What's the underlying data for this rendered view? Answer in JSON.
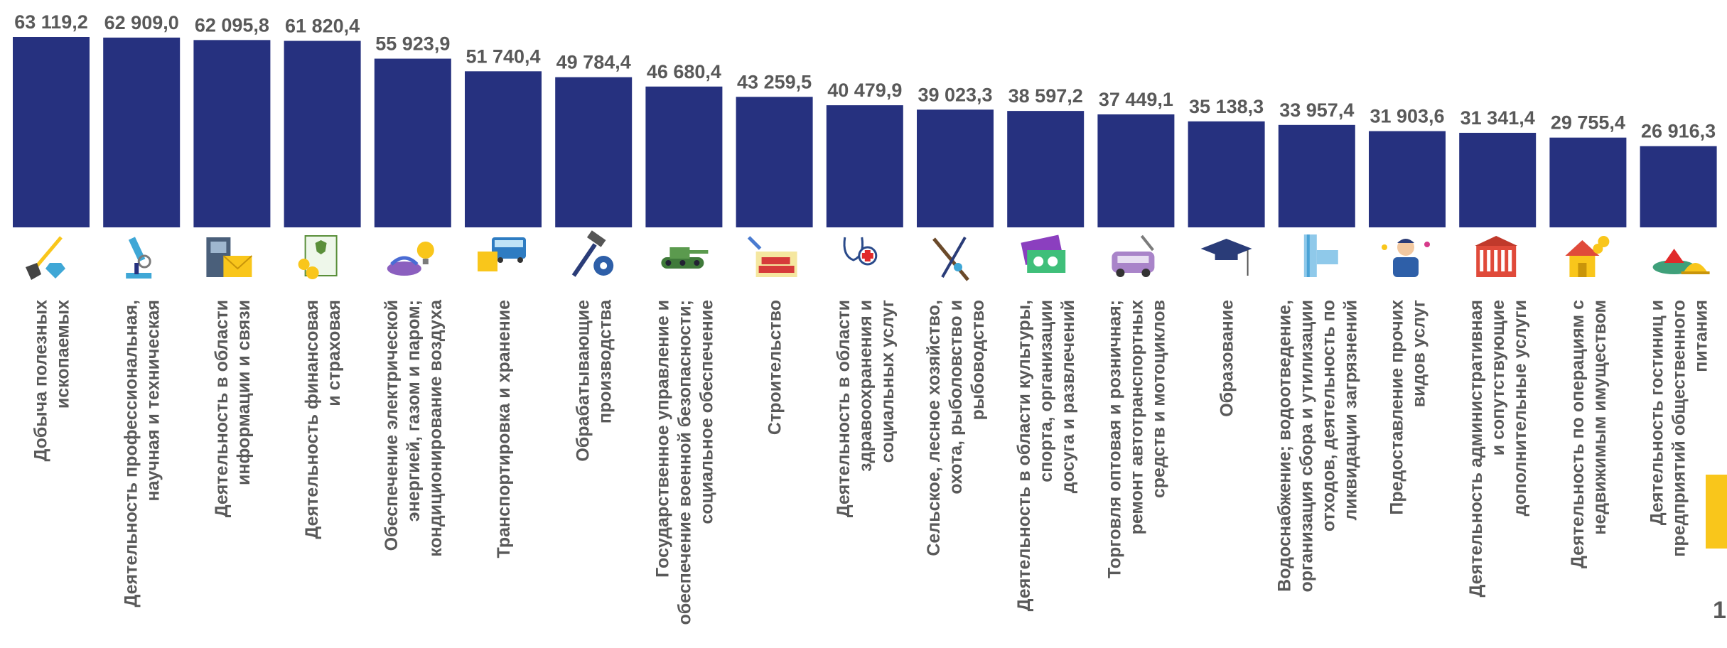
{
  "colors": {
    "bar": "#26317f",
    "text": "#595959",
    "accent": "#f9c61b"
  },
  "page_number": "1",
  "chart_data": {
    "type": "bar",
    "title": "",
    "xlabel": "",
    "ylabel": "",
    "ylim": [
      0,
      63119.2
    ],
    "grid": false,
    "legend": "none",
    "categories": [
      "Добыча полезных ископаемых",
      "Деятельность профессиональная, научная и техническая",
      "Деятельность в области информации и связи",
      "Деятельность финансовая и страховая",
      "Обеспечение электрической энергией, газом и паром; кондиционирование воздуха",
      "Транспортировка и хранение",
      "Обрабатывающие производства",
      "Государственное управление и обеспечение военной безопасности; социальное обеспечение",
      "Строительство",
      "Деятельность в области здравоохранения и социальных услуг",
      "Сельское, лесное хозяйство, охота, рыболовство и рыбоводство",
      "Деятельность в области культуры, спорта, организации досуга и развлечений",
      "Торговля оптовая и розничная; ремонт автотранспортных средств и мотоциклов",
      "Образование",
      "Водоснабжение; водоотведение, организация сбора и утилизации отходов, деятельность по ликвидации загрязнений",
      "Предоставление прочих видов услуг",
      "Деятельность административная и сопутствующие дополнительные услуги",
      "Деятельность по операциям с недвижимым имуществом",
      "Деятельность гостиниц и предприятий общественного питания"
    ],
    "label_lines": [
      [
        "Добыча полезных",
        "ископаемых"
      ],
      [
        "Деятельность профессиональная,",
        "научная и техническая"
      ],
      [
        "Деятельность в области",
        "информации и связи"
      ],
      [
        "Деятельность финансовая",
        "и страховая"
      ],
      [
        "Обеспечение электрической",
        "энергией, газом и паром;",
        "кондиционирование воздуха"
      ],
      [
        "Транспортировка и хранение"
      ],
      [
        "Обрабатывающие",
        "производства"
      ],
      [
        "Государственное управление и",
        "обеспечение военной безопасности;",
        "социальное обеспечение"
      ],
      [
        "Строительство"
      ],
      [
        "Деятельность в области",
        "здравоохранения и",
        "социальных услуг"
      ],
      [
        "Сельское, лесное хозяйство,",
        "охота, рыболовство и",
        "рыбоводство"
      ],
      [
        "Деятельность в области культуры,",
        "спорта, организации",
        "досуга и развлечений"
      ],
      [
        "Торговля оптовая и розничная;",
        "ремонт автотранспортных",
        "средств и мотоциклов"
      ],
      [
        "Образование"
      ],
      [
        "Водоснабжение; водоотведение,",
        "организация сбора и утилизации",
        "отходов, деятельность по",
        "ликвидации загрязнений"
      ],
      [
        "Предоставление прочих",
        "видов услуг"
      ],
      [
        "Деятельность административная",
        "и сопутствующие",
        "дополнительные услуги"
      ],
      [
        "Деятельность по операциям с",
        "недвижимым имуществом"
      ],
      [
        "Деятельность гостиниц и",
        "предприятий общественного",
        "питания"
      ]
    ],
    "values": [
      63119.2,
      62909.0,
      62095.8,
      61820.4,
      55923.9,
      51740.4,
      49784.4,
      46680.4,
      43259.5,
      40479.9,
      39023.3,
      38597.2,
      37449.1,
      35138.3,
      33957.4,
      31903.6,
      31341.4,
      29755.4,
      26916.3
    ],
    "value_labels": [
      "63 119,2",
      "62 909,0",
      "62 095,8",
      "61 820,4",
      "55 923,9",
      "51 740,4",
      "49 784,4",
      "46 680,4",
      "43 259,5",
      "40 479,9",
      "39 023,3",
      "38 597,2",
      "37 449,1",
      "35 138,3",
      "33 957,4",
      "31 903,6",
      "31 341,4",
      "29 755,4",
      "26 916,3"
    ],
    "icons": [
      "shovel-gem-icon",
      "microscope-icon",
      "phone-envelope-icon",
      "document-coins-icon",
      "gas-burner-lightbulb-icon",
      "bus-box-icon",
      "hammer-gear-icon",
      "tank-icon",
      "bricks-trowel-icon",
      "stethoscope-icon",
      "fishing-rod-rifle-icon",
      "tickets-icon",
      "car-wrench-icon",
      "graduation-cap-icon",
      "water-pipe-icon",
      "service-person-icon",
      "government-building-icon",
      "house-coins-icon",
      "dish-cloche-icon"
    ]
  }
}
